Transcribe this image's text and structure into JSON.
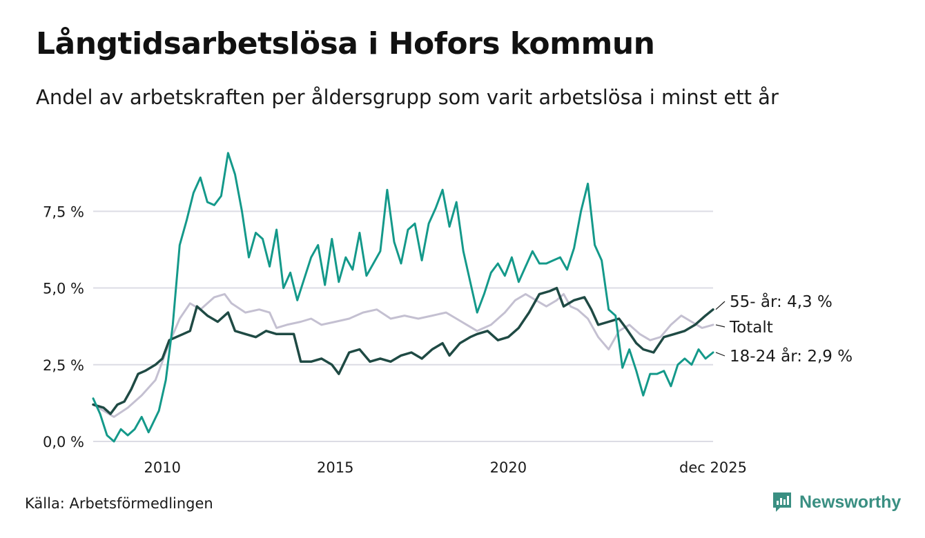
{
  "header": {
    "title": "Långtidsarbetslösa i Hofors kommun",
    "subtitle": "Andel av arbetskraften per åldersgrupp som varit arbetslösa i minst ett år"
  },
  "footer": {
    "source": "Källa: Arbetsförmedlingen",
    "brand": "Newsworthy"
  },
  "colors": {
    "youth": "#14998a",
    "older": "#1f4a44",
    "total": "#c4c0d1",
    "grid": "#dcdce4",
    "brand": "#3a8f82"
  },
  "chart_data": {
    "type": "line",
    "title": "Långtidsarbetslösa i Hofors kommun",
    "xlabel": "",
    "ylabel": "",
    "x_range": [
      2008.0,
      2025.92
    ],
    "ylim": [
      0,
      9.8
    ],
    "grid": true,
    "y_ticks": [
      {
        "value": 0,
        "label": "0,0 %"
      },
      {
        "value": 2.5,
        "label": "2,5 %"
      },
      {
        "value": 5,
        "label": "5,0 %"
      },
      {
        "value": 7.5,
        "label": "7,5 %"
      }
    ],
    "x_ticks": [
      {
        "value": 2010,
        "label": "2010"
      },
      {
        "value": 2015,
        "label": "2015"
      },
      {
        "value": 2020,
        "label": "2020"
      },
      {
        "value": 2025.92,
        "label": "dec 2025"
      }
    ],
    "series": [
      {
        "name": "Totalt",
        "key": "total",
        "end_label": "Totalt",
        "points": [
          [
            2008.0,
            1.2
          ],
          [
            2008.3,
            1.0
          ],
          [
            2008.6,
            0.8
          ],
          [
            2009.0,
            1.1
          ],
          [
            2009.4,
            1.5
          ],
          [
            2009.8,
            2.0
          ],
          [
            2010.2,
            3.2
          ],
          [
            2010.5,
            4.0
          ],
          [
            2010.8,
            4.5
          ],
          [
            2011.1,
            4.3
          ],
          [
            2011.5,
            4.7
          ],
          [
            2011.8,
            4.8
          ],
          [
            2012.0,
            4.5
          ],
          [
            2012.4,
            4.2
          ],
          [
            2012.8,
            4.3
          ],
          [
            2013.1,
            4.2
          ],
          [
            2013.3,
            3.7
          ],
          [
            2013.6,
            3.8
          ],
          [
            2014.0,
            3.9
          ],
          [
            2014.3,
            4.0
          ],
          [
            2014.6,
            3.8
          ],
          [
            2015.0,
            3.9
          ],
          [
            2015.4,
            4.0
          ],
          [
            2015.8,
            4.2
          ],
          [
            2016.2,
            4.3
          ],
          [
            2016.6,
            4.0
          ],
          [
            2017.0,
            4.1
          ],
          [
            2017.4,
            4.0
          ],
          [
            2017.8,
            4.1
          ],
          [
            2018.2,
            4.2
          ],
          [
            2018.5,
            4.0
          ],
          [
            2018.8,
            3.8
          ],
          [
            2019.1,
            3.6
          ],
          [
            2019.5,
            3.8
          ],
          [
            2019.9,
            4.2
          ],
          [
            2020.2,
            4.6
          ],
          [
            2020.5,
            4.8
          ],
          [
            2020.8,
            4.6
          ],
          [
            2021.1,
            4.4
          ],
          [
            2021.4,
            4.6
          ],
          [
            2021.6,
            4.8
          ],
          [
            2021.8,
            4.4
          ],
          [
            2022.0,
            4.3
          ],
          [
            2022.3,
            4.0
          ],
          [
            2022.6,
            3.4
          ],
          [
            2022.9,
            3.0
          ],
          [
            2023.2,
            3.6
          ],
          [
            2023.5,
            3.8
          ],
          [
            2023.8,
            3.5
          ],
          [
            2024.1,
            3.3
          ],
          [
            2024.4,
            3.4
          ],
          [
            2024.7,
            3.8
          ],
          [
            2025.0,
            4.1
          ],
          [
            2025.3,
            3.9
          ],
          [
            2025.6,
            3.7
          ],
          [
            2025.92,
            3.8
          ]
        ]
      },
      {
        "name": "55- år",
        "key": "older",
        "end_label": "55- år: 4,3 %",
        "points": [
          [
            2008.0,
            1.2
          ],
          [
            2008.3,
            1.1
          ],
          [
            2008.5,
            0.9
          ],
          [
            2008.7,
            1.2
          ],
          [
            2008.9,
            1.3
          ],
          [
            2009.1,
            1.7
          ],
          [
            2009.3,
            2.2
          ],
          [
            2009.5,
            2.3
          ],
          [
            2009.8,
            2.5
          ],
          [
            2010.0,
            2.7
          ],
          [
            2010.2,
            3.3
          ],
          [
            2010.4,
            3.4
          ],
          [
            2010.6,
            3.5
          ],
          [
            2010.8,
            3.6
          ],
          [
            2011.0,
            4.4
          ],
          [
            2011.3,
            4.1
          ],
          [
            2011.6,
            3.9
          ],
          [
            2011.9,
            4.2
          ],
          [
            2012.1,
            3.6
          ],
          [
            2012.4,
            3.5
          ],
          [
            2012.7,
            3.4
          ],
          [
            2013.0,
            3.6
          ],
          [
            2013.3,
            3.5
          ],
          [
            2013.6,
            3.5
          ],
          [
            2013.8,
            3.5
          ],
          [
            2014.0,
            2.6
          ],
          [
            2014.3,
            2.6
          ],
          [
            2014.6,
            2.7
          ],
          [
            2014.9,
            2.5
          ],
          [
            2015.1,
            2.2
          ],
          [
            2015.4,
            2.9
          ],
          [
            2015.7,
            3.0
          ],
          [
            2016.0,
            2.6
          ],
          [
            2016.3,
            2.7
          ],
          [
            2016.6,
            2.6
          ],
          [
            2016.9,
            2.8
          ],
          [
            2017.2,
            2.9
          ],
          [
            2017.5,
            2.7
          ],
          [
            2017.8,
            3.0
          ],
          [
            2018.1,
            3.2
          ],
          [
            2018.3,
            2.8
          ],
          [
            2018.6,
            3.2
          ],
          [
            2018.9,
            3.4
          ],
          [
            2019.1,
            3.5
          ],
          [
            2019.4,
            3.6
          ],
          [
            2019.7,
            3.3
          ],
          [
            2020.0,
            3.4
          ],
          [
            2020.3,
            3.7
          ],
          [
            2020.6,
            4.2
          ],
          [
            2020.9,
            4.8
          ],
          [
            2021.2,
            4.9
          ],
          [
            2021.4,
            5.0
          ],
          [
            2021.6,
            4.4
          ],
          [
            2021.9,
            4.6
          ],
          [
            2022.2,
            4.7
          ],
          [
            2022.4,
            4.3
          ],
          [
            2022.6,
            3.8
          ],
          [
            2022.9,
            3.9
          ],
          [
            2023.2,
            4.0
          ],
          [
            2023.4,
            3.7
          ],
          [
            2023.7,
            3.2
          ],
          [
            2023.9,
            3.0
          ],
          [
            2024.2,
            2.9
          ],
          [
            2024.5,
            3.4
          ],
          [
            2024.8,
            3.5
          ],
          [
            2025.1,
            3.6
          ],
          [
            2025.4,
            3.8
          ],
          [
            2025.7,
            4.1
          ],
          [
            2025.92,
            4.3
          ]
        ]
      },
      {
        "name": "18-24 år",
        "key": "youth",
        "end_label": "18-24 år: 2,9 %",
        "points": [
          [
            2008.0,
            1.4
          ],
          [
            2008.2,
            0.9
          ],
          [
            2008.4,
            0.2
          ],
          [
            2008.6,
            0.0
          ],
          [
            2008.8,
            0.4
          ],
          [
            2009.0,
            0.2
          ],
          [
            2009.2,
            0.4
          ],
          [
            2009.4,
            0.8
          ],
          [
            2009.6,
            0.3
          ],
          [
            2009.9,
            1.0
          ],
          [
            2010.1,
            2.0
          ],
          [
            2010.3,
            3.8
          ],
          [
            2010.5,
            6.4
          ],
          [
            2010.7,
            7.2
          ],
          [
            2010.9,
            8.1
          ],
          [
            2011.1,
            8.6
          ],
          [
            2011.3,
            7.8
          ],
          [
            2011.5,
            7.7
          ],
          [
            2011.7,
            8.0
          ],
          [
            2011.9,
            9.4
          ],
          [
            2012.1,
            8.7
          ],
          [
            2012.3,
            7.5
          ],
          [
            2012.5,
            6.0
          ],
          [
            2012.7,
            6.8
          ],
          [
            2012.9,
            6.6
          ],
          [
            2013.1,
            5.7
          ],
          [
            2013.3,
            6.9
          ],
          [
            2013.5,
            5.0
          ],
          [
            2013.7,
            5.5
          ],
          [
            2013.9,
            4.6
          ],
          [
            2014.1,
            5.3
          ],
          [
            2014.3,
            6.0
          ],
          [
            2014.5,
            6.4
          ],
          [
            2014.7,
            5.1
          ],
          [
            2014.9,
            6.6
          ],
          [
            2015.1,
            5.2
          ],
          [
            2015.3,
            6.0
          ],
          [
            2015.5,
            5.6
          ],
          [
            2015.7,
            6.8
          ],
          [
            2015.9,
            5.4
          ],
          [
            2016.1,
            5.8
          ],
          [
            2016.3,
            6.2
          ],
          [
            2016.5,
            8.2
          ],
          [
            2016.7,
            6.5
          ],
          [
            2016.9,
            5.8
          ],
          [
            2017.1,
            6.9
          ],
          [
            2017.3,
            7.1
          ],
          [
            2017.5,
            5.9
          ],
          [
            2017.7,
            7.1
          ],
          [
            2017.9,
            7.6
          ],
          [
            2018.1,
            8.2
          ],
          [
            2018.3,
            7.0
          ],
          [
            2018.5,
            7.8
          ],
          [
            2018.7,
            6.2
          ],
          [
            2018.9,
            5.2
          ],
          [
            2019.1,
            4.2
          ],
          [
            2019.3,
            4.8
          ],
          [
            2019.5,
            5.5
          ],
          [
            2019.7,
            5.8
          ],
          [
            2019.9,
            5.4
          ],
          [
            2020.1,
            6.0
          ],
          [
            2020.3,
            5.2
          ],
          [
            2020.5,
            5.7
          ],
          [
            2020.7,
            6.2
          ],
          [
            2020.9,
            5.8
          ],
          [
            2021.1,
            5.8
          ],
          [
            2021.3,
            5.9
          ],
          [
            2021.5,
            6.0
          ],
          [
            2021.7,
            5.6
          ],
          [
            2021.9,
            6.3
          ],
          [
            2022.1,
            7.5
          ],
          [
            2022.3,
            8.4
          ],
          [
            2022.5,
            6.4
          ],
          [
            2022.7,
            5.9
          ],
          [
            2022.9,
            4.3
          ],
          [
            2023.1,
            4.1
          ],
          [
            2023.3,
            2.4
          ],
          [
            2023.5,
            3.0
          ],
          [
            2023.7,
            2.3
          ],
          [
            2023.9,
            1.5
          ],
          [
            2024.1,
            2.2
          ],
          [
            2024.3,
            2.2
          ],
          [
            2024.5,
            2.3
          ],
          [
            2024.7,
            1.8
          ],
          [
            2024.9,
            2.5
          ],
          [
            2025.1,
            2.7
          ],
          [
            2025.3,
            2.5
          ],
          [
            2025.5,
            3.0
          ],
          [
            2025.7,
            2.7
          ],
          [
            2025.92,
            2.9
          ]
        ]
      }
    ]
  }
}
